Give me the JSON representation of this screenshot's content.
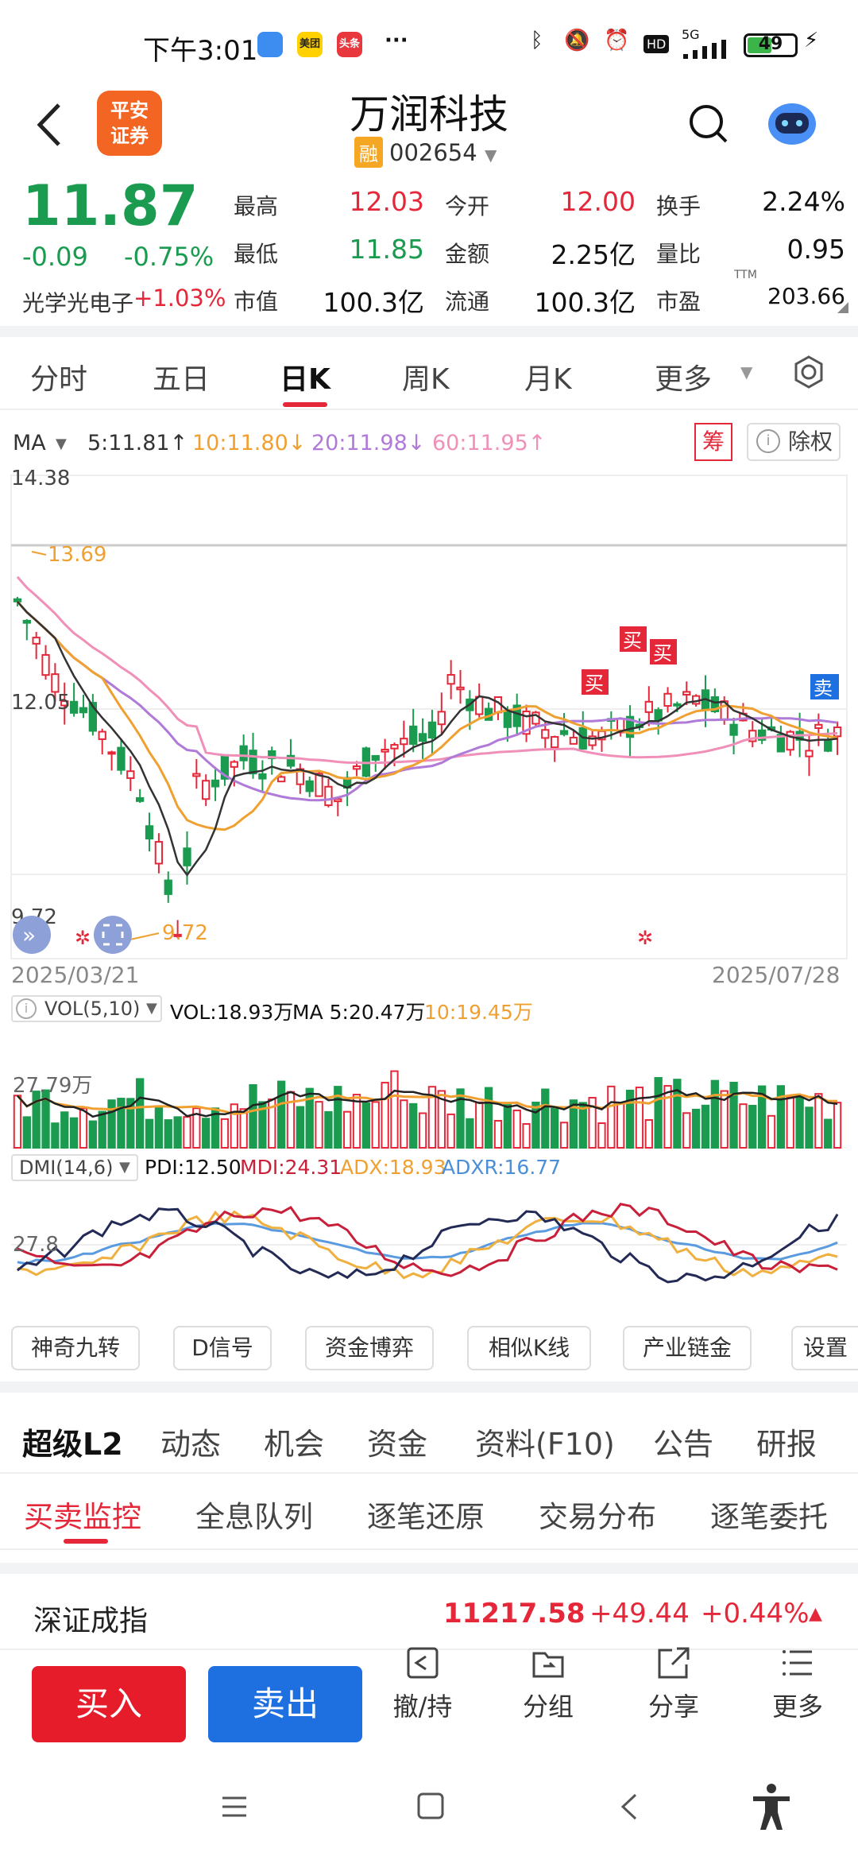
{
  "status_bar": {
    "time": "下午3:01",
    "apps": [
      "美团",
      "头条"
    ],
    "more": "···",
    "network": "5G",
    "hd": "HD",
    "battery": "49"
  },
  "header": {
    "title": "万润科技",
    "rong": "融",
    "code": "002654",
    "logo_text": [
      "平安",
      "证券"
    ]
  },
  "quote": {
    "price": "11.87",
    "change": "-0.09",
    "change_pct": "-0.75%",
    "sector_name": "光学光电子",
    "sector_pct": "+1.03%",
    "rows": [
      [
        {
          "label": "最高",
          "value": "12.03",
          "color": "red"
        },
        {
          "label": "今开",
          "value": "12.00",
          "color": "red"
        },
        {
          "label": "换手",
          "value": "2.24%",
          "color": "black"
        }
      ],
      [
        {
          "label": "最低",
          "value": "11.85",
          "color": "green"
        },
        {
          "label": "金额",
          "value": "2.25亿",
          "color": "black"
        },
        {
          "label": "量比",
          "value": "0.95",
          "color": "black"
        }
      ],
      [
        {
          "label": "市值",
          "value": "100.3亿",
          "color": "black"
        },
        {
          "label": "流通",
          "value": "100.3亿",
          "color": "black"
        },
        {
          "label": "市盈",
          "value": "203.66",
          "color": "black",
          "sup": "TTM"
        }
      ]
    ]
  },
  "period_tabs": [
    "分时",
    "五日",
    "日K",
    "周K",
    "月K",
    "更多"
  ],
  "active_tab": "日K",
  "ma": {
    "label": "MA",
    "ma5": "5:11.81↑",
    "ma10": "10:11.80↓",
    "ma20": "20:11.98↓",
    "ma60": "60:11.95↑",
    "chip": "筹",
    "chuquan": "除权"
  },
  "chart": {
    "y_high": "14.38",
    "y_mid": "12.05",
    "y_low": "9.72",
    "high_mark": "13.69",
    "low_mark": "9.72",
    "date_start": "2025/03/21",
    "date_end": "2025/07/28",
    "buy_label": "买",
    "sell_label": "卖"
  },
  "vol": {
    "label": "VOL(5,10)",
    "vol": "VOL:18.93万",
    "ma5": "MA 5:20.47万",
    "ma10": "10:19.45万",
    "axis": "27.79万"
  },
  "dmi": {
    "label": "DMI(14,6)",
    "pdi": "PDI:12.50",
    "mdi": "MDI:24.31",
    "adx": "ADX:18.93",
    "adxr": "ADXR:16.77",
    "axis": "27.8"
  },
  "tool_buttons": [
    "神奇九转",
    "D信号",
    "资金博弈",
    "相似K线",
    "产业链金",
    "设置"
  ],
  "news_tabs": [
    "超级L2",
    "动态",
    "机会",
    "资金",
    "资料(F10)",
    "公告",
    "研报"
  ],
  "sub_tabs": [
    "买卖监控",
    "全息队列",
    "逐笔还原",
    "交易分布",
    "逐笔委托"
  ],
  "index": {
    "name": "深证成指",
    "value": "11217.58",
    "change": "+49.44",
    "pct": "+0.44%"
  },
  "actions": {
    "buy": "买入",
    "sell": "卖出",
    "items": [
      "撤/持",
      "分组",
      "分享",
      "更多"
    ]
  },
  "colors": {
    "up": "#e4283a",
    "down": "#1a9b4f",
    "ma5": "#333333",
    "ma10": "#f0a030",
    "ma20": "#b07ad8",
    "ma60": "#f08fb8",
    "buy": "#e4283a",
    "sell": "#1e6fe0"
  }
}
